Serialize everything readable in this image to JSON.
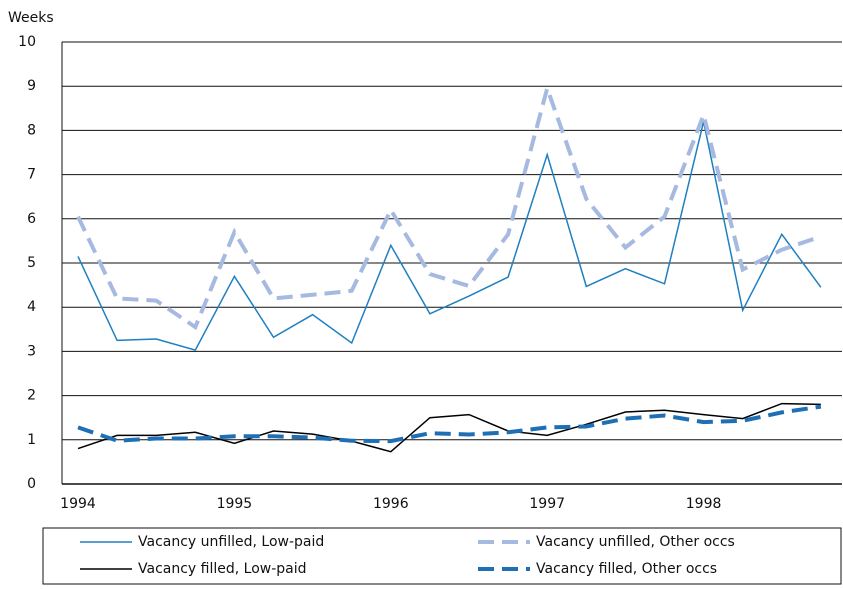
{
  "chart_data": {
    "type": "line",
    "y_label": "Weeks",
    "categories": [
      "1994",
      null,
      null,
      null,
      "1995",
      null,
      null,
      null,
      "1996",
      null,
      null,
      null,
      "1997",
      null,
      null,
      null,
      "1998",
      null,
      null,
      null
    ],
    "series": [
      {
        "name": "Vacancy unfilled, Low-paid",
        "color": "#1f7fc0",
        "dashed": false,
        "values": [
          5.15,
          3.25,
          3.28,
          3.03,
          4.7,
          3.32,
          3.83,
          3.19,
          5.4,
          3.85,
          4.25,
          4.68,
          7.45,
          4.47,
          4.87,
          4.53,
          8.2,
          3.93,
          5.65,
          4.45
        ]
      },
      {
        "name": "Vacancy unfilled, Other occs",
        "color": "#a6b9e0",
        "dashed": true,
        "values": [
          6.05,
          4.2,
          4.15,
          3.55,
          5.7,
          4.2,
          4.28,
          4.37,
          6.2,
          4.75,
          4.48,
          5.65,
          8.95,
          6.45,
          5.35,
          6.05,
          8.35,
          4.85,
          5.3,
          5.6
        ]
      },
      {
        "name": "Vacancy filled, Low-paid",
        "color": "#000000",
        "dashed": false,
        "values": [
          0.8,
          1.1,
          1.1,
          1.17,
          0.92,
          1.2,
          1.13,
          0.97,
          0.73,
          1.5,
          1.57,
          1.2,
          1.1,
          1.35,
          1.63,
          1.67,
          1.57,
          1.48,
          1.82,
          1.8
        ]
      },
      {
        "name": "Vacancy filled, Other occs",
        "color": "#1f6fb5",
        "dashed": true,
        "values": [
          1.28,
          0.98,
          1.03,
          1.03,
          1.08,
          1.08,
          1.05,
          0.98,
          0.97,
          1.15,
          1.12,
          1.17,
          1.28,
          1.3,
          1.48,
          1.55,
          1.4,
          1.43,
          1.62,
          1.75
        ]
      }
    ],
    "ylim": [
      0,
      10
    ],
    "yticks": [
      0,
      1,
      2,
      3,
      4,
      5,
      6,
      7,
      8,
      9,
      10
    ],
    "grid": true,
    "legend": "bottom"
  }
}
